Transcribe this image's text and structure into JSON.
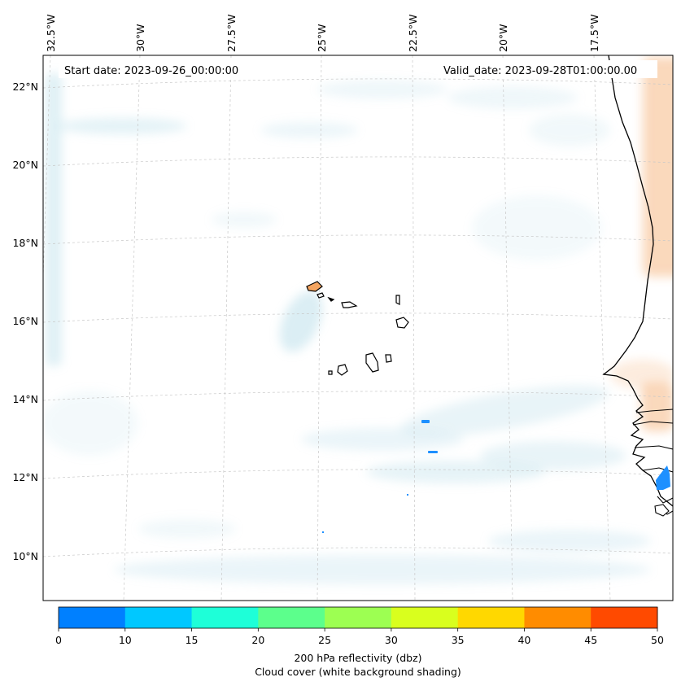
{
  "map": {
    "start_date": "Start date: 2023-09-26_00:00:00",
    "valid_date": "Valid_date: 2023-09-28T01:00:00.00",
    "top_labels": [
      "32.5°W",
      "30°W",
      "27.5°W",
      "25°W",
      "22.5°W",
      "20°W",
      "17.5°W"
    ],
    "left_labels": [
      "22°N",
      "20°N",
      "18°N",
      "16°N",
      "14°N",
      "12°N",
      "10°N"
    ]
  },
  "colorbar": {
    "colors": [
      "#0080ff",
      "#00c8ff",
      "#1effd8",
      "#5cff8c",
      "#9dff52",
      "#d9ff1e",
      "#ffd800",
      "#ff8c00",
      "#ff4a00"
    ],
    "ticks": [
      "0",
      "10",
      "15",
      "20",
      "25",
      "30",
      "35",
      "40",
      "45",
      "50"
    ],
    "label_line1": "200 hPa reflectivity (dbz)",
    "label_line2": "Cloud cover (white background shading)"
  },
  "palette": {
    "cloud": "#add8e6",
    "warm": "#f4a460",
    "reflect": "#1e90ff"
  }
}
